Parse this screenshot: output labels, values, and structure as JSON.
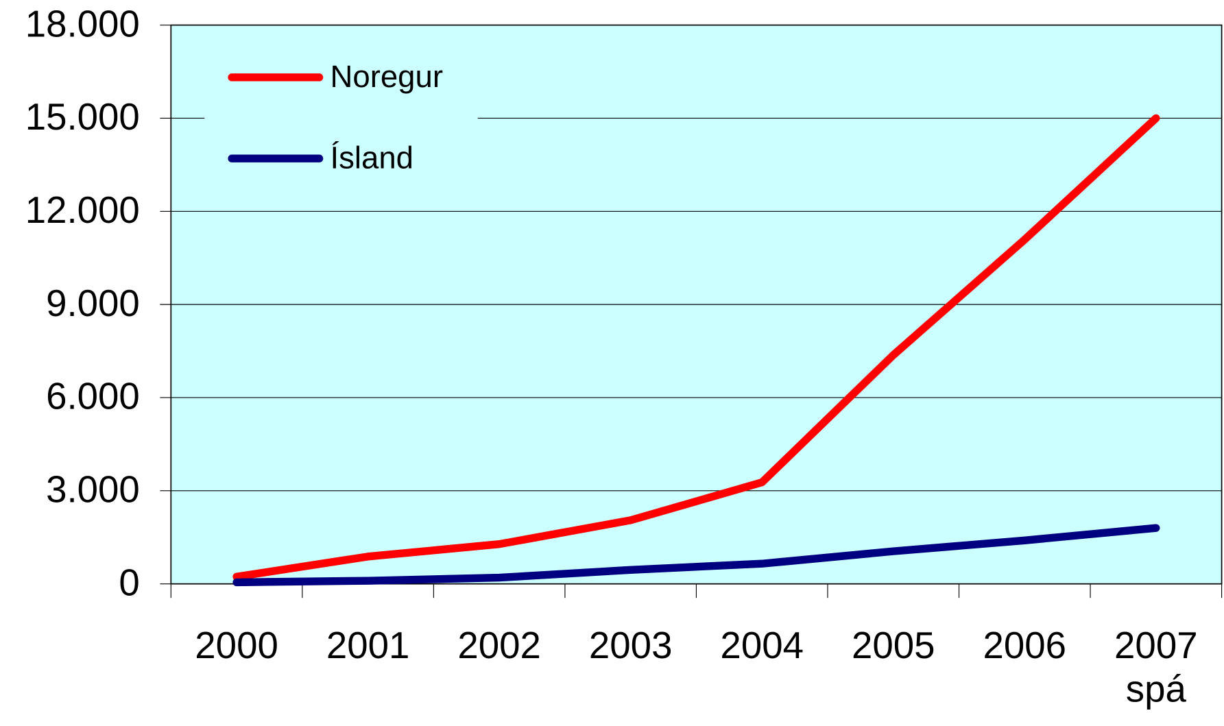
{
  "chart_data": {
    "type": "line",
    "categories": [
      "2000",
      "2001",
      "2002",
      "2003",
      "2004",
      "2005",
      "2006",
      "2007\nspá"
    ],
    "series": [
      {
        "name": "Noregur",
        "color": "#ff0000",
        "values": [
          230,
          880,
          1280,
          2050,
          3270,
          7370,
          11090,
          15000
        ]
      },
      {
        "name": "Ísland",
        "color": "#000080",
        "values": [
          50,
          100,
          200,
          450,
          650,
          1050,
          1400,
          1800
        ]
      }
    ],
    "ylim": [
      0,
      18000
    ],
    "yticks": [
      0,
      {
        "value": 3000,
        "label": "3.000"
      },
      {
        "value": 6000,
        "label": "6.000"
      },
      {
        "value": 9000,
        "label": "9.000"
      },
      {
        "value": 12000,
        "label": "12.000"
      },
      {
        "value": 15000,
        "label": "15.000"
      },
      {
        "value": 18000,
        "label": "18.000"
      }
    ],
    "grid": true,
    "legend": "upper left",
    "plot_background": "#ccffff"
  }
}
